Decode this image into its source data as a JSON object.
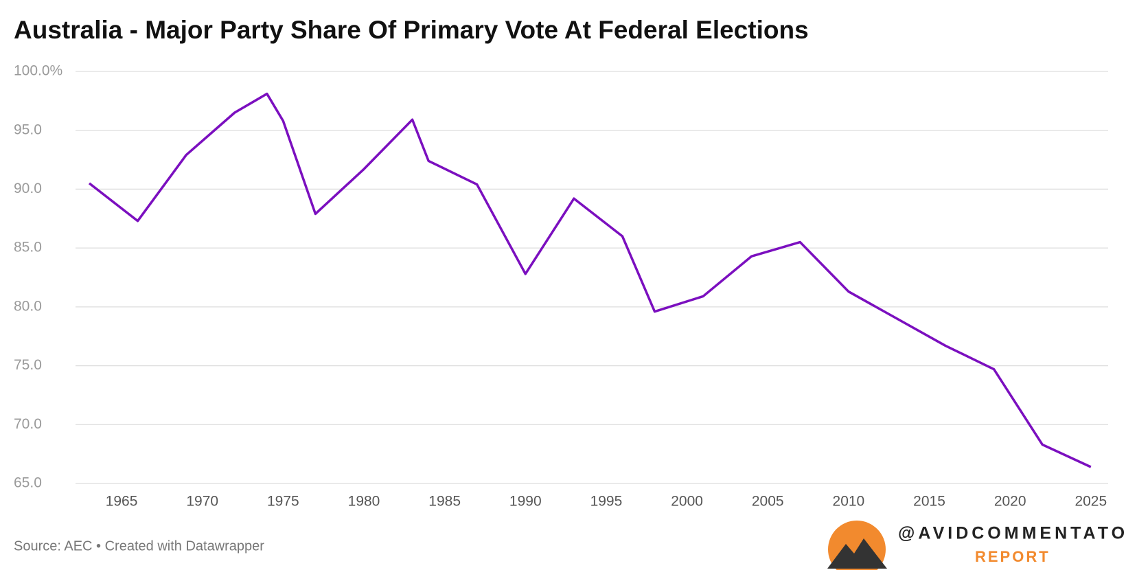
{
  "chart_data": {
    "type": "line",
    "title": "Australia - Major Party Share Of Primary Vote At Federal Elections",
    "source": "Source: AEC • Created with Datawrapper",
    "x": [
      1963,
      1966,
      1969,
      1972,
      1974,
      1975,
      1977,
      1980,
      1983,
      1984,
      1987,
      1990,
      1993,
      1996,
      1998,
      2001,
      2004,
      2007,
      2010,
      2013,
      2016,
      2019,
      2022,
      2025
    ],
    "values": [
      90.5,
      87.3,
      92.9,
      96.5,
      98.1,
      95.8,
      87.9,
      91.7,
      95.9,
      92.4,
      90.4,
      82.8,
      89.2,
      86.0,
      79.6,
      80.9,
      84.3,
      85.5,
      81.3,
      79.0,
      76.7,
      74.7,
      68.3,
      66.4
    ],
    "color": "#7b0fbf",
    "xlim": [
      1962.15,
      2026.07
    ],
    "xticks": [
      1965,
      1970,
      1975,
      1980,
      1985,
      1990,
      1995,
      2000,
      2005,
      2010,
      2015,
      2020,
      2025
    ],
    "ylim": [
      65,
      100
    ],
    "yticks": [
      {
        "value": 65,
        "label": "65.0"
      },
      {
        "value": 70,
        "label": "70.0"
      },
      {
        "value": 75,
        "label": "75.0"
      },
      {
        "value": 80,
        "label": "80.0"
      },
      {
        "value": 85,
        "label": "85.0"
      },
      {
        "value": 90,
        "label": "90.0"
      },
      {
        "value": 95,
        "label": "95.0"
      },
      {
        "value": 100,
        "label": "100.0%"
      }
    ],
    "grid": true
  },
  "logo": {
    "handle": "@AVIDCOMMENTATOR",
    "tagline": "REPORT"
  }
}
